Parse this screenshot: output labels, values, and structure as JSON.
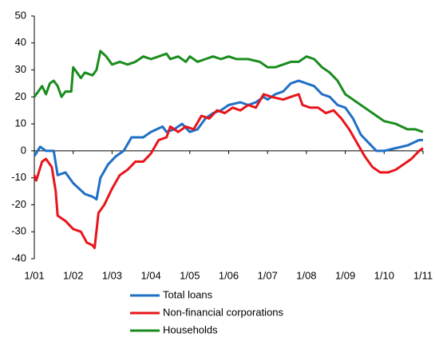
{
  "chart_data": {
    "type": "line",
    "xlim": [
      2001,
      2011
    ],
    "xticks": [
      {
        "value": 2001,
        "label": "1/01"
      },
      {
        "value": 2002,
        "label": "1/02"
      },
      {
        "value": 2003,
        "label": "1/03"
      },
      {
        "value": 2004,
        "label": "1/04"
      },
      {
        "value": 2005,
        "label": "1/05"
      },
      {
        "value": 2006,
        "label": "1/06"
      },
      {
        "value": 2007,
        "label": "1/07"
      },
      {
        "value": 2008,
        "label": "1/08"
      },
      {
        "value": 2009,
        "label": "1/09"
      },
      {
        "value": 2010,
        "label": "1/10"
      },
      {
        "value": 2011,
        "label": "1/11"
      }
    ],
    "ylim": [
      -40,
      50
    ],
    "yticks": [
      -40,
      -30,
      -20,
      -10,
      0,
      10,
      20,
      30,
      40,
      50
    ],
    "series": [
      {
        "name": "Total loans",
        "color": "#1f6fc5",
        "x": [
          2001.0,
          2001.15,
          2001.3,
          2001.5,
          2001.6,
          2001.8,
          2002.0,
          2002.3,
          2002.5,
          2002.6,
          2002.7,
          2002.9,
          2003.1,
          2003.3,
          2003.5,
          2003.8,
          2004.0,
          2004.3,
          2004.4,
          2004.6,
          2004.8,
          2005.0,
          2005.2,
          2005.4,
          2005.6,
          2005.8,
          2006.0,
          2006.3,
          2006.5,
          2006.7,
          2006.9,
          2007.0,
          2007.2,
          2007.4,
          2007.6,
          2007.8,
          2008.0,
          2008.2,
          2008.4,
          2008.6,
          2008.8,
          2009.0,
          2009.2,
          2009.4,
          2009.6,
          2009.8,
          2010.0,
          2010.3,
          2010.6,
          2010.9,
          2011.0
        ],
        "values": [
          -2,
          1.5,
          0,
          0,
          -9,
          -8,
          -12,
          -16,
          -17,
          -18,
          -10,
          -5,
          -2,
          0,
          5,
          5,
          7,
          9,
          7,
          8,
          10,
          7,
          8,
          12,
          14,
          15,
          17,
          18,
          17,
          18,
          20,
          19,
          21,
          22,
          25,
          26,
          25,
          24,
          21,
          20,
          17,
          16,
          12,
          6,
          3,
          0,
          0,
          1,
          2,
          4,
          4
        ]
      },
      {
        "name": "Non-financial corporations",
        "color": "#e8141b",
        "x": [
          2001.0,
          2001.05,
          2001.2,
          2001.3,
          2001.45,
          2001.55,
          2001.6,
          2001.8,
          2002.0,
          2002.2,
          2002.35,
          2002.5,
          2002.55,
          2002.65,
          2002.8,
          2003.0,
          2003.2,
          2003.4,
          2003.6,
          2003.8,
          2004.0,
          2004.2,
          2004.4,
          2004.5,
          2004.7,
          2004.9,
          2005.1,
          2005.3,
          2005.5,
          2005.7,
          2005.9,
          2006.1,
          2006.3,
          2006.5,
          2006.7,
          2006.9,
          2007.1,
          2007.4,
          2007.6,
          2007.8,
          2007.9,
          2008.1,
          2008.3,
          2008.5,
          2008.7,
          2008.9,
          2009.1,
          2009.3,
          2009.5,
          2009.7,
          2009.9,
          2010.1,
          2010.3,
          2010.5,
          2010.7,
          2010.9,
          2011.0
        ],
        "values": [
          -9,
          -11,
          -4,
          -3,
          -6,
          -15,
          -24,
          -26,
          -29,
          -30,
          -34,
          -35,
          -36,
          -23,
          -20,
          -14,
          -9,
          -7,
          -4,
          -4,
          -1,
          4,
          5,
          9,
          7,
          9,
          8,
          13,
          12,
          15,
          14,
          16,
          15,
          17,
          16,
          21,
          20,
          19,
          20,
          21,
          17,
          16,
          16,
          14,
          15,
          12,
          8,
          3,
          -2,
          -6,
          -8,
          -8,
          -7,
          -5,
          -3,
          0,
          1
        ]
      },
      {
        "name": "Households",
        "color": "#1a8c1e",
        "x": [
          2001.0,
          2001.1,
          2001.2,
          2001.3,
          2001.4,
          2001.5,
          2001.6,
          2001.7,
          2001.8,
          2001.95,
          2002.0,
          2002.2,
          2002.3,
          2002.5,
          2002.6,
          2002.7,
          2002.85,
          2003.0,
          2003.2,
          2003.4,
          2003.6,
          2003.8,
          2004.0,
          2004.2,
          2004.4,
          2004.5,
          2004.7,
          2004.9,
          2005.0,
          2005.2,
          2005.4,
          2005.6,
          2005.8,
          2006.0,
          2006.2,
          2006.5,
          2006.8,
          2007.0,
          2007.2,
          2007.4,
          2007.6,
          2007.8,
          2008.0,
          2008.2,
          2008.4,
          2008.6,
          2008.8,
          2009.0,
          2009.2,
          2009.5,
          2009.8,
          2010.0,
          2010.3,
          2010.6,
          2010.8,
          2011.0
        ],
        "values": [
          20,
          22,
          24,
          21,
          25,
          26,
          24,
          20,
          22,
          22,
          31,
          27,
          29,
          28,
          30,
          37,
          35,
          32,
          33,
          32,
          33,
          35,
          34,
          35,
          36,
          34,
          35,
          33,
          35,
          33,
          34,
          35,
          34,
          35,
          34,
          34,
          33,
          31,
          31,
          32,
          33,
          33,
          35,
          34,
          31,
          29,
          26,
          21,
          19,
          16,
          13,
          11,
          10,
          8,
          8,
          7
        ]
      }
    ]
  }
}
